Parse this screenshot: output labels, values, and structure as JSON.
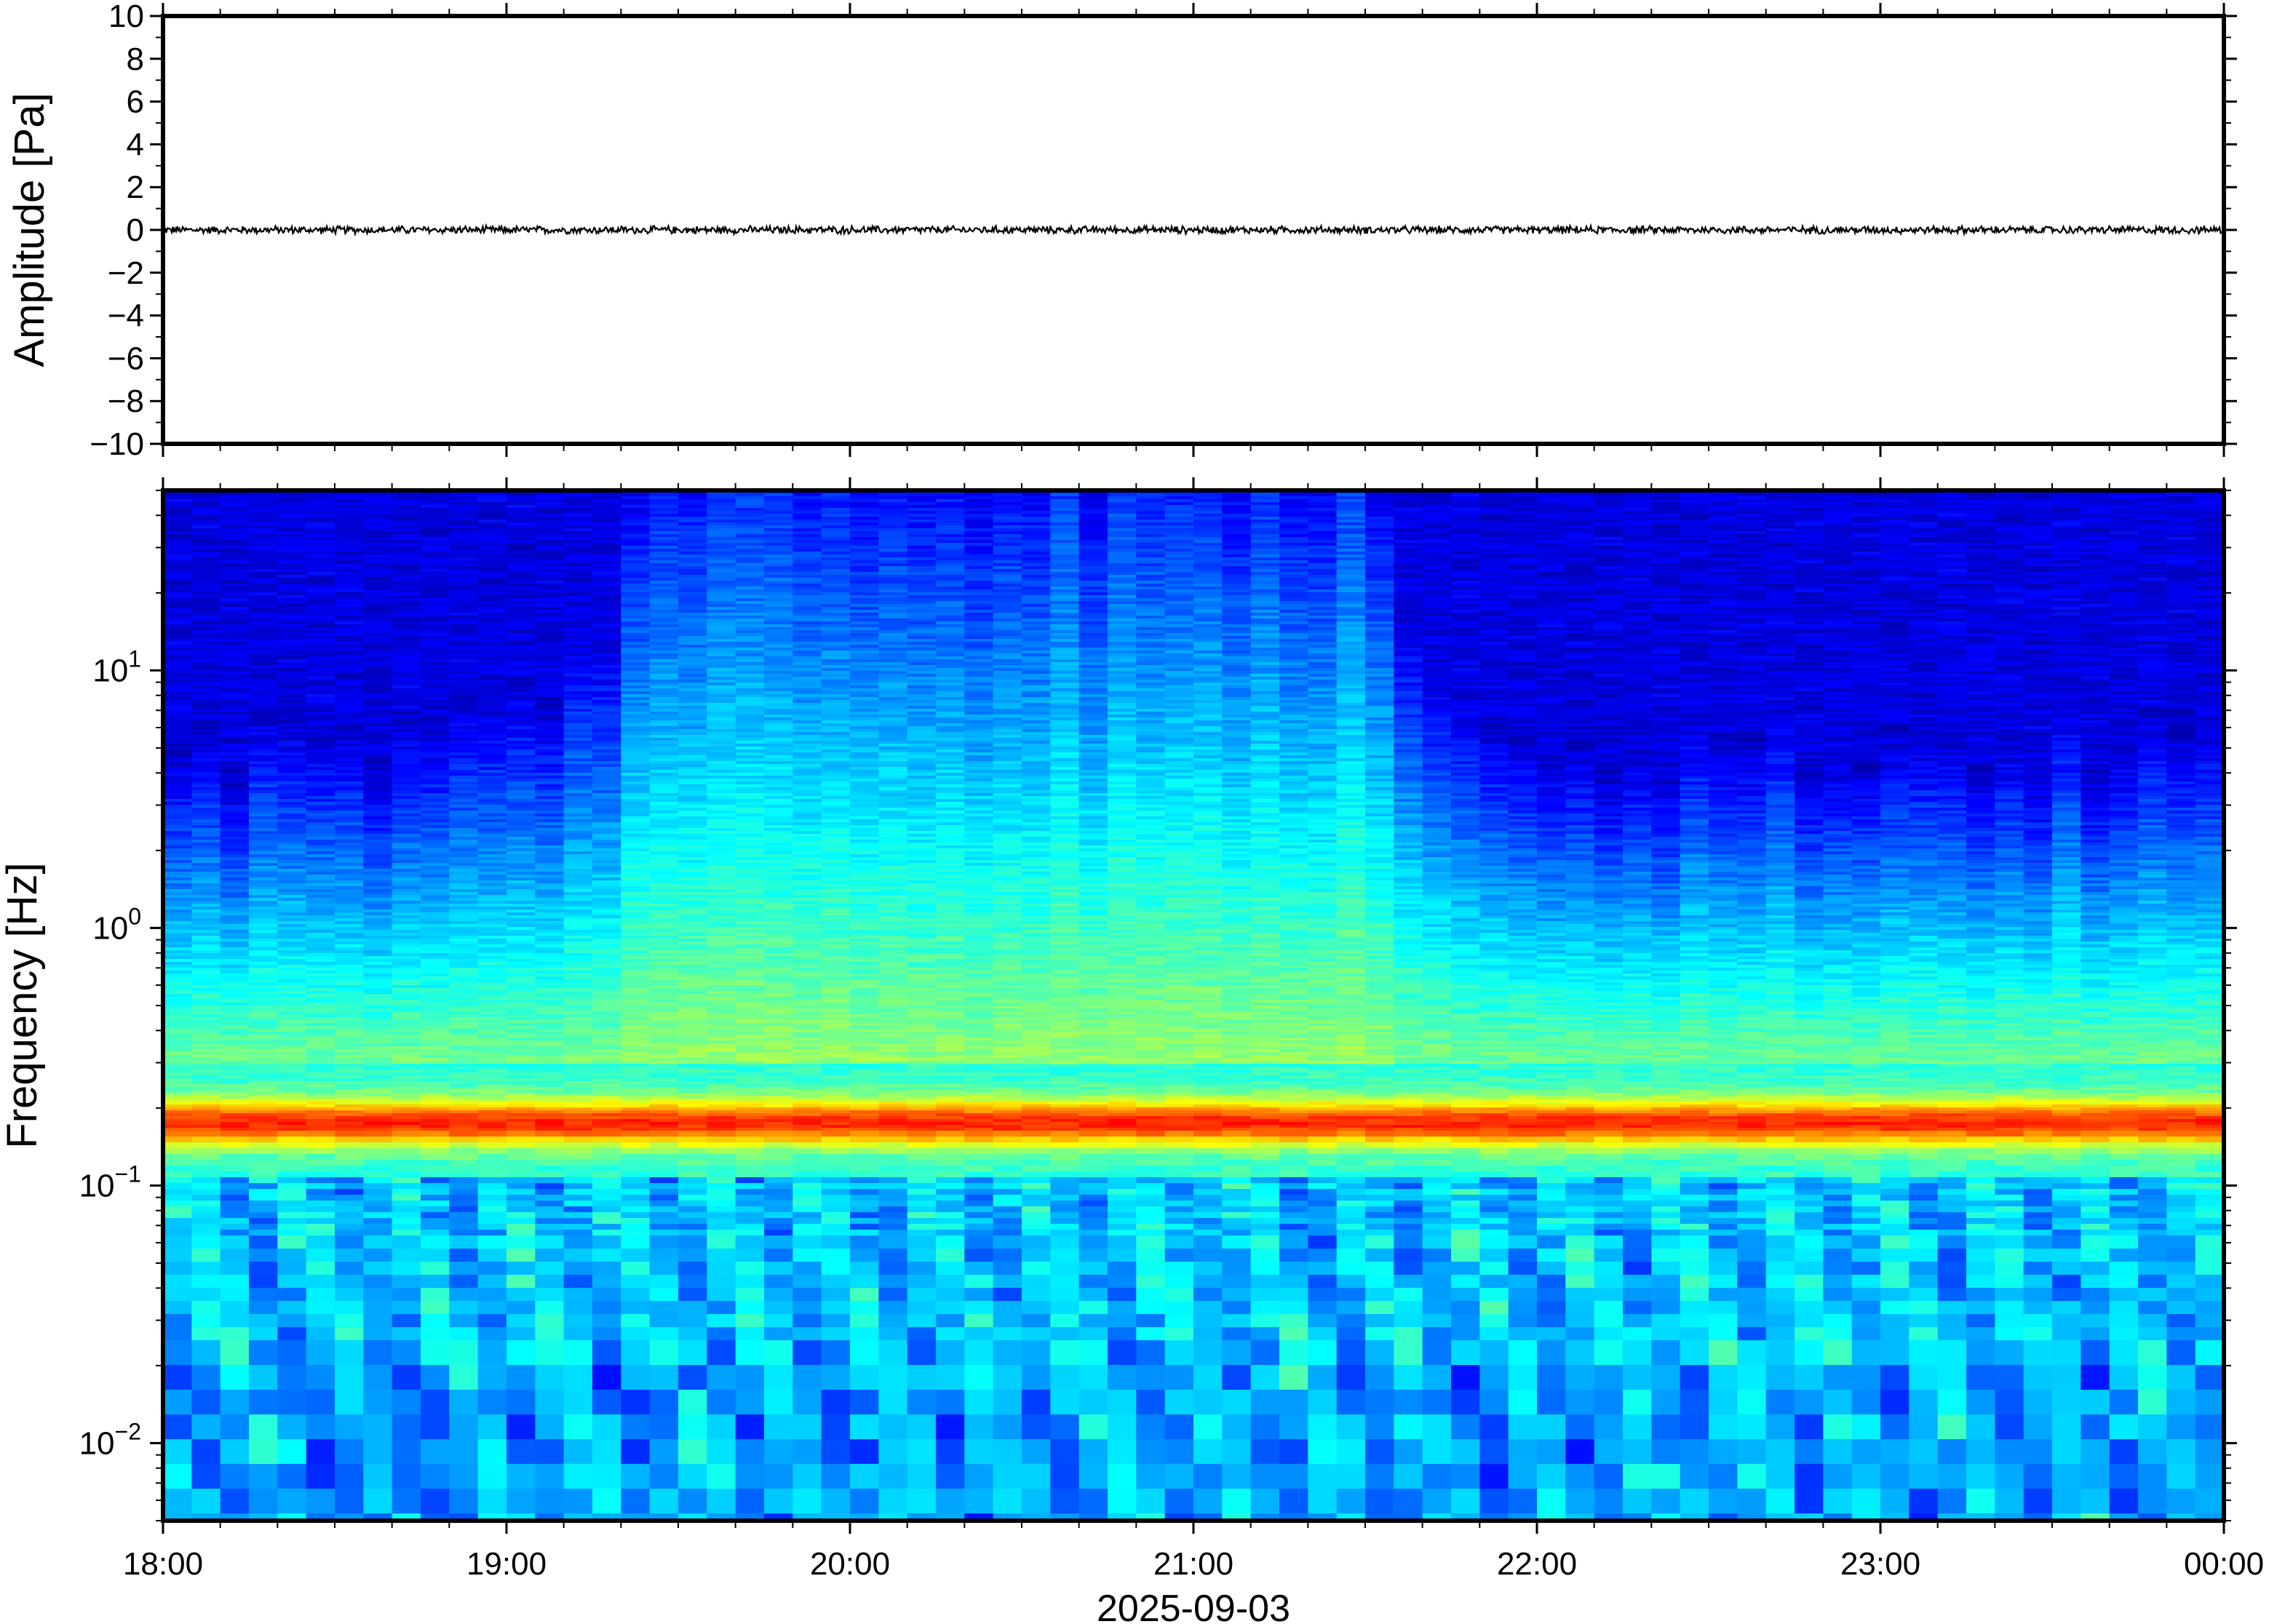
{
  "chart_data": [
    {
      "type": "line",
      "title": "",
      "ylabel": "Amplitude [Pa]",
      "xlabel": "",
      "ylim": [
        -10,
        10
      ],
      "yticks": [
        "10",
        "8",
        "6",
        "4",
        "2",
        "0",
        "−2",
        "−4",
        "−6",
        "−8",
        "−10"
      ],
      "ytick_values": [
        10,
        8,
        6,
        4,
        2,
        0,
        -2,
        -4,
        -6,
        -8,
        -10
      ],
      "x_range": [
        "2025-09-03T18:00",
        "2025-09-04T00:00"
      ],
      "series": [
        {
          "values_description": "",
          "noise_amplitude_pa": 0.15,
          "mean_pa": 0.0
        }
      ],
      "grid": false,
      "line_color": "#000000"
    },
    {
      "type": "heatmap",
      "title": "",
      "ylabel": "Frequency [Hz]",
      "xlabel": "2025-09-03",
      "y_scale": "log",
      "ylim": [
        0.005,
        50
      ],
      "ytick_labels": [
        {
          "base": "10",
          "exp": "1",
          "value": 10
        },
        {
          "base": "10",
          "exp": "0",
          "value": 1
        },
        {
          "base": "10",
          "exp": "−1",
          "value": 0.1
        },
        {
          "base": "10",
          "exp": "−2",
          "value": 0.01
        }
      ],
      "xtick_labels": [
        "18:00",
        "19:00",
        "20:00",
        "21:00",
        "22:00",
        "23:00",
        "00:00"
      ],
      "xtick_hours": [
        18,
        19,
        20,
        21,
        22,
        23,
        24
      ],
      "x_range_hours": [
        18,
        24
      ],
      "colormap": "jet",
      "dominant_band_hz": [
        0.13,
        0.25
      ],
      "active_period_hours": [
        19.3,
        21.6
      ],
      "grid": false
    }
  ]
}
